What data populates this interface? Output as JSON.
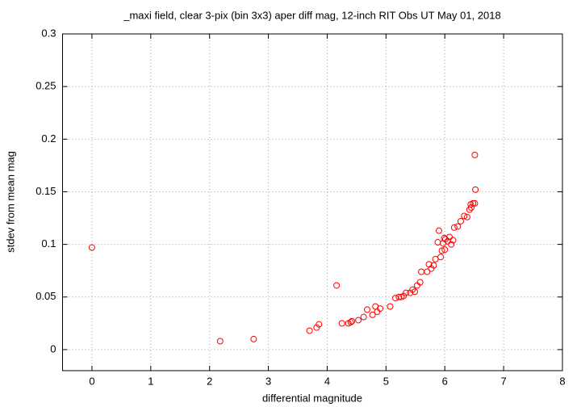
{
  "chart_data": {
    "type": "scatter",
    "title": "_maxi field, clear 3-pix (bin 3x3) aper diff mag,  12-inch RIT Obs UT May 01, 2018",
    "x_label": "differential magnitude",
    "y_label": "stdev from mean mag",
    "color": "#ff0000",
    "grid": true,
    "xlim": [
      -0.5,
      8
    ],
    "xticks": [
      0,
      1,
      2,
      3,
      4,
      5,
      6,
      7,
      8
    ],
    "ylim": [
      -0.02,
      0.3
    ],
    "yticks": [
      0,
      0.05,
      0.1,
      0.15,
      0.2,
      0.25,
      0.3
    ],
    "x": [
      0,
      2.18,
      2.75,
      3.7,
      3.82,
      3.86,
      4.16,
      4.25,
      4.36,
      4.4,
      4.42,
      4.53,
      4.62,
      4.68,
      4.77,
      4.82,
      4.85,
      4.9,
      5.07,
      5.16,
      5.22,
      5.26,
      5.3,
      5.34,
      5.41,
      5.45,
      5.49,
      5.53,
      5.58,
      5.6,
      5.7,
      5.73,
      5.77,
      5.81,
      5.84,
      5.88,
      5.9,
      5.93,
      5.95,
      5.97,
      5.99,
      6.0,
      6.01,
      6.05,
      6.08,
      6.11,
      6.14,
      6.16,
      6.22,
      6.27,
      6.33,
      6.38,
      6.42,
      6.44,
      6.45,
      6.48,
      6.51,
      6.52,
      6.51
    ],
    "values": [
      0.097,
      0.008,
      0.01,
      0.018,
      0.021,
      0.024,
      0.061,
      0.025,
      0.025,
      0.026,
      0.027,
      0.028,
      0.031,
      0.038,
      0.033,
      0.041,
      0.036,
      0.039,
      0.041,
      0.049,
      0.05,
      0.05,
      0.051,
      0.054,
      0.054,
      0.057,
      0.055,
      0.061,
      0.064,
      0.074,
      0.074,
      0.081,
      0.077,
      0.08,
      0.086,
      0.102,
      0.113,
      0.088,
      0.094,
      0.101,
      0.106,
      0.095,
      0.105,
      0.103,
      0.107,
      0.1,
      0.104,
      0.116,
      0.117,
      0.122,
      0.127,
      0.126,
      0.133,
      0.138,
      0.135,
      0.139,
      0.139,
      0.152,
      0.185
    ]
  }
}
